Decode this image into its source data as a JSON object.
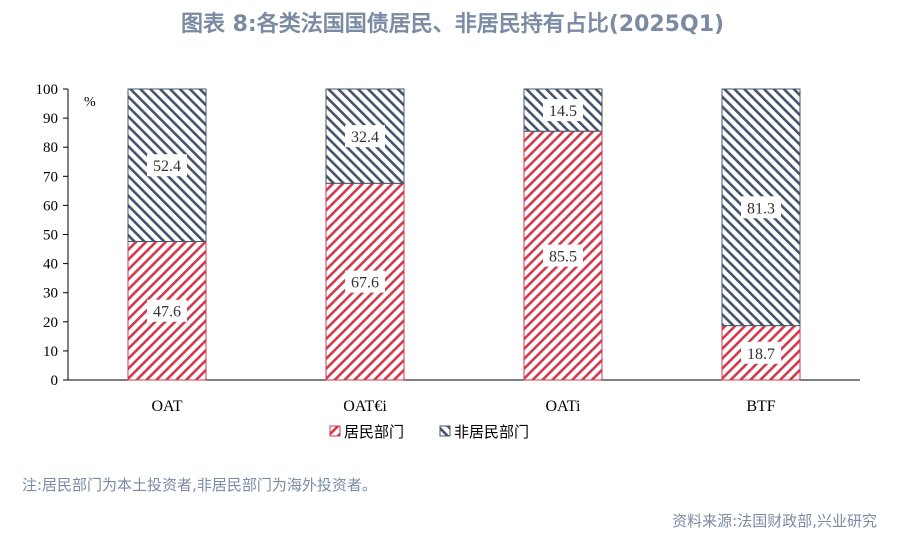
{
  "title": "图表 8:各类法国国债居民、非居民持有占比(2025Q1)",
  "note": "注:居民部门为本土投资者,非居民部门为海外投资者。",
  "source": "资料来源:法国财政部,兴业研究",
  "colors": {
    "resident": "#d03a4c",
    "non_resident": "#44546a",
    "text": "#7a8ba3"
  },
  "chart_data": {
    "type": "bar",
    "stacked": true,
    "title": "图表 8:各类法国国债居民、非居民持有占比(2025Q1)",
    "categories": [
      "OAT",
      "OAT€i",
      "OATi",
      "BTF"
    ],
    "series": [
      {
        "name": "居民部门",
        "values": [
          47.6,
          67.6,
          85.5,
          18.7
        ]
      },
      {
        "name": "非居民部门",
        "values": [
          52.4,
          32.4,
          14.5,
          81.3
        ]
      }
    ],
    "ylabel": "%",
    "ylim": [
      0,
      100
    ],
    "yticks": [
      0,
      10,
      20,
      30,
      40,
      50,
      60,
      70,
      80,
      90,
      100
    ],
    "grid": false,
    "legend": "bottom"
  }
}
